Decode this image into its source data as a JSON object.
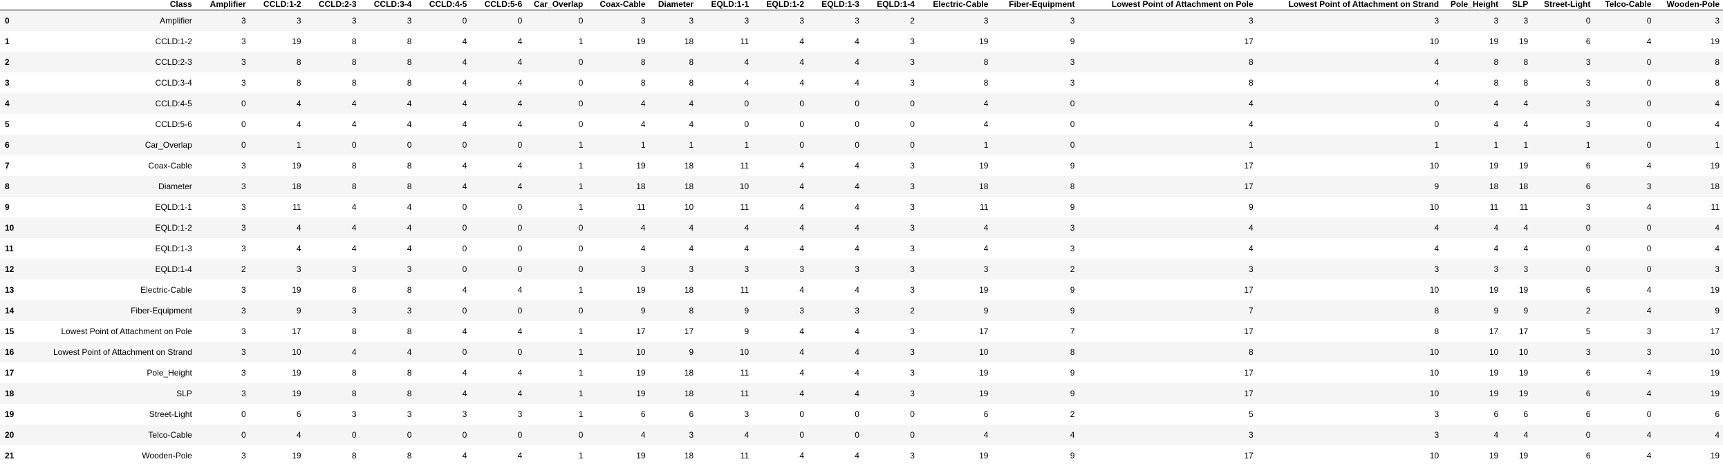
{
  "table": {
    "index_header": "",
    "columns": [
      "Class",
      "Amplifier",
      "CCLD:1-2",
      "CCLD:2-3",
      "CCLD:3-4",
      "CCLD:4-5",
      "CCLD:5-6",
      "Car_Overlap",
      "Coax-Cable",
      "Diameter",
      "EQLD:1-1",
      "EQLD:1-2",
      "EQLD:1-3",
      "EQLD:1-4",
      "Electric-Cable",
      "Fiber-Equipment",
      "Lowest Point of Attachment on Pole",
      "Lowest Point of Attachment on Strand",
      "Pole_Height",
      "SLP",
      "Street-Light",
      "Telco-Cable",
      "Wooden-Pole"
    ],
    "rows": [
      {
        "index": "0",
        "cells": [
          "Amplifier",
          "3",
          "3",
          "3",
          "3",
          "0",
          "0",
          "0",
          "3",
          "3",
          "3",
          "3",
          "3",
          "2",
          "3",
          "3",
          "3",
          "3",
          "3",
          "3",
          "0",
          "0",
          "3"
        ]
      },
      {
        "index": "1",
        "cells": [
          "CCLD:1-2",
          "3",
          "19",
          "8",
          "8",
          "4",
          "4",
          "1",
          "19",
          "18",
          "11",
          "4",
          "4",
          "3",
          "19",
          "9",
          "17",
          "10",
          "19",
          "19",
          "6",
          "4",
          "19"
        ]
      },
      {
        "index": "2",
        "cells": [
          "CCLD:2-3",
          "3",
          "8",
          "8",
          "8",
          "4",
          "4",
          "0",
          "8",
          "8",
          "4",
          "4",
          "4",
          "3",
          "8",
          "3",
          "8",
          "4",
          "8",
          "8",
          "3",
          "0",
          "8"
        ]
      },
      {
        "index": "3",
        "cells": [
          "CCLD:3-4",
          "3",
          "8",
          "8",
          "8",
          "4",
          "4",
          "0",
          "8",
          "8",
          "4",
          "4",
          "4",
          "3",
          "8",
          "3",
          "8",
          "4",
          "8",
          "8",
          "3",
          "0",
          "8"
        ]
      },
      {
        "index": "4",
        "cells": [
          "CCLD:4-5",
          "0",
          "4",
          "4",
          "4",
          "4",
          "4",
          "0",
          "4",
          "4",
          "0",
          "0",
          "0",
          "0",
          "4",
          "0",
          "4",
          "0",
          "4",
          "4",
          "3",
          "0",
          "4"
        ]
      },
      {
        "index": "5",
        "cells": [
          "CCLD:5-6",
          "0",
          "4",
          "4",
          "4",
          "4",
          "4",
          "0",
          "4",
          "4",
          "0",
          "0",
          "0",
          "0",
          "4",
          "0",
          "4",
          "0",
          "4",
          "4",
          "3",
          "0",
          "4"
        ]
      },
      {
        "index": "6",
        "cells": [
          "Car_Overlap",
          "0",
          "1",
          "0",
          "0",
          "0",
          "0",
          "1",
          "1",
          "1",
          "1",
          "0",
          "0",
          "0",
          "1",
          "0",
          "1",
          "1",
          "1",
          "1",
          "1",
          "0",
          "1"
        ]
      },
      {
        "index": "7",
        "cells": [
          "Coax-Cable",
          "3",
          "19",
          "8",
          "8",
          "4",
          "4",
          "1",
          "19",
          "18",
          "11",
          "4",
          "4",
          "3",
          "19",
          "9",
          "17",
          "10",
          "19",
          "19",
          "6",
          "4",
          "19"
        ]
      },
      {
        "index": "8",
        "cells": [
          "Diameter",
          "3",
          "18",
          "8",
          "8",
          "4",
          "4",
          "1",
          "18",
          "18",
          "10",
          "4",
          "4",
          "3",
          "18",
          "8",
          "17",
          "9",
          "18",
          "18",
          "6",
          "3",
          "18"
        ]
      },
      {
        "index": "9",
        "cells": [
          "EQLD:1-1",
          "3",
          "11",
          "4",
          "4",
          "0",
          "0",
          "1",
          "11",
          "10",
          "11",
          "4",
          "4",
          "3",
          "11",
          "9",
          "9",
          "10",
          "11",
          "11",
          "3",
          "4",
          "11"
        ]
      },
      {
        "index": "10",
        "cells": [
          "EQLD:1-2",
          "3",
          "4",
          "4",
          "4",
          "0",
          "0",
          "0",
          "4",
          "4",
          "4",
          "4",
          "4",
          "3",
          "4",
          "3",
          "4",
          "4",
          "4",
          "4",
          "0",
          "0",
          "4"
        ]
      },
      {
        "index": "11",
        "cells": [
          "EQLD:1-3",
          "3",
          "4",
          "4",
          "4",
          "0",
          "0",
          "0",
          "4",
          "4",
          "4",
          "4",
          "4",
          "3",
          "4",
          "3",
          "4",
          "4",
          "4",
          "4",
          "0",
          "0",
          "4"
        ]
      },
      {
        "index": "12",
        "cells": [
          "EQLD:1-4",
          "2",
          "3",
          "3",
          "3",
          "0",
          "0",
          "0",
          "3",
          "3",
          "3",
          "3",
          "3",
          "3",
          "3",
          "2",
          "3",
          "3",
          "3",
          "3",
          "0",
          "0",
          "3"
        ]
      },
      {
        "index": "13",
        "cells": [
          "Electric-Cable",
          "3",
          "19",
          "8",
          "8",
          "4",
          "4",
          "1",
          "19",
          "18",
          "11",
          "4",
          "4",
          "3",
          "19",
          "9",
          "17",
          "10",
          "19",
          "19",
          "6",
          "4",
          "19"
        ]
      },
      {
        "index": "14",
        "cells": [
          "Fiber-Equipment",
          "3",
          "9",
          "3",
          "3",
          "0",
          "0",
          "0",
          "9",
          "8",
          "9",
          "3",
          "3",
          "2",
          "9",
          "9",
          "7",
          "8",
          "9",
          "9",
          "2",
          "4",
          "9"
        ]
      },
      {
        "index": "15",
        "cells": [
          "Lowest Point of Attachment on Pole",
          "3",
          "17",
          "8",
          "8",
          "4",
          "4",
          "1",
          "17",
          "17",
          "9",
          "4",
          "4",
          "3",
          "17",
          "7",
          "17",
          "8",
          "17",
          "17",
          "5",
          "3",
          "17"
        ]
      },
      {
        "index": "16",
        "cells": [
          "Lowest Point of Attachment on Strand",
          "3",
          "10",
          "4",
          "4",
          "0",
          "0",
          "1",
          "10",
          "9",
          "10",
          "4",
          "4",
          "3",
          "10",
          "8",
          "8",
          "10",
          "10",
          "10",
          "3",
          "3",
          "10"
        ]
      },
      {
        "index": "17",
        "cells": [
          "Pole_Height",
          "3",
          "19",
          "8",
          "8",
          "4",
          "4",
          "1",
          "19",
          "18",
          "11",
          "4",
          "4",
          "3",
          "19",
          "9",
          "17",
          "10",
          "19",
          "19",
          "6",
          "4",
          "19"
        ]
      },
      {
        "index": "18",
        "cells": [
          "SLP",
          "3",
          "19",
          "8",
          "8",
          "4",
          "4",
          "1",
          "19",
          "18",
          "11",
          "4",
          "4",
          "3",
          "19",
          "9",
          "17",
          "10",
          "19",
          "19",
          "6",
          "4",
          "19"
        ]
      },
      {
        "index": "19",
        "cells": [
          "Street-Light",
          "0",
          "6",
          "3",
          "3",
          "3",
          "3",
          "1",
          "6",
          "6",
          "3",
          "0",
          "0",
          "0",
          "6",
          "2",
          "5",
          "3",
          "6",
          "6",
          "6",
          "0",
          "6"
        ]
      },
      {
        "index": "20",
        "cells": [
          "Telco-Cable",
          "0",
          "4",
          "0",
          "0",
          "0",
          "0",
          "0",
          "4",
          "3",
          "4",
          "0",
          "0",
          "0",
          "4",
          "4",
          "3",
          "3",
          "4",
          "4",
          "0",
          "4",
          "4"
        ]
      },
      {
        "index": "21",
        "cells": [
          "Wooden-Pole",
          "3",
          "19",
          "8",
          "8",
          "4",
          "4",
          "1",
          "19",
          "18",
          "11",
          "4",
          "4",
          "3",
          "19",
          "9",
          "17",
          "10",
          "19",
          "19",
          "6",
          "4",
          "19"
        ]
      }
    ]
  }
}
